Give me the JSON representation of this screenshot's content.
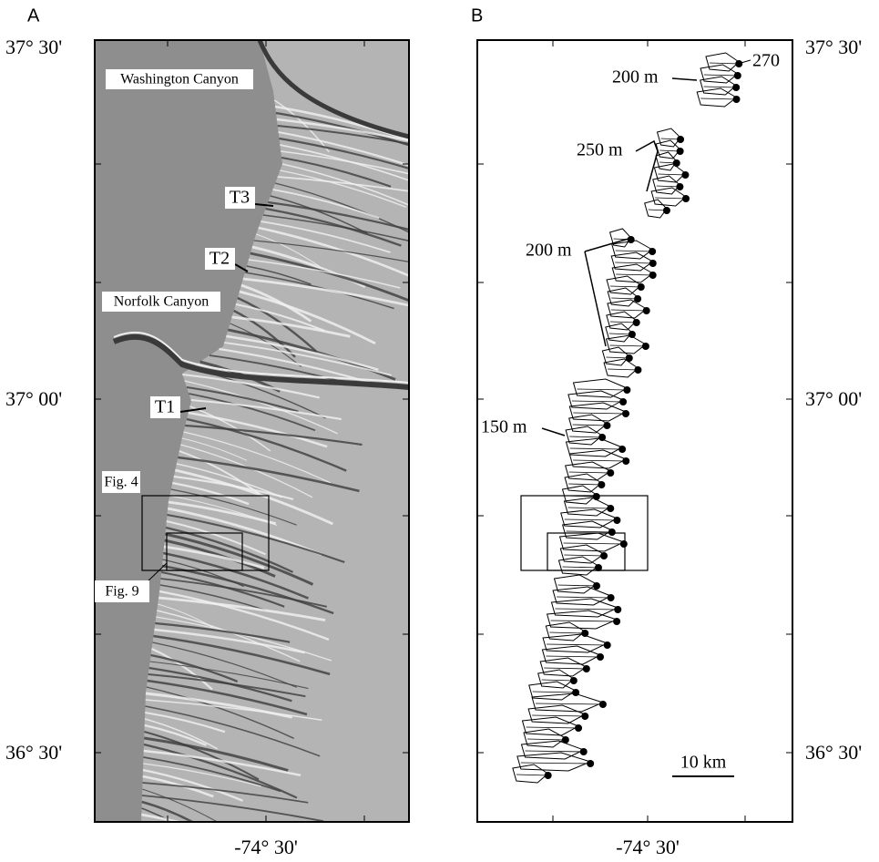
{
  "panel_a": {
    "label": "A",
    "lat_labels": [
      "37° 30'",
      "37° 00'",
      "36° 30'"
    ],
    "lon_label": "-74° 30'",
    "place_names": [
      "Washington Canyon",
      "Norfolk Canyon"
    ],
    "transects": [
      "T3",
      "T2",
      "T1"
    ],
    "figure_boxes": [
      "Fig. 4",
      "Fig. 9"
    ]
  },
  "panel_b": {
    "label": "B",
    "lat_labels": [
      "37° 30'",
      "37° 00'",
      "36° 30'"
    ],
    "lon_label": "-74° 30'",
    "depth_labels": [
      "270",
      "200 m",
      "250 m",
      "200 m",
      "150 m"
    ],
    "scale_bar": "10 km"
  }
}
